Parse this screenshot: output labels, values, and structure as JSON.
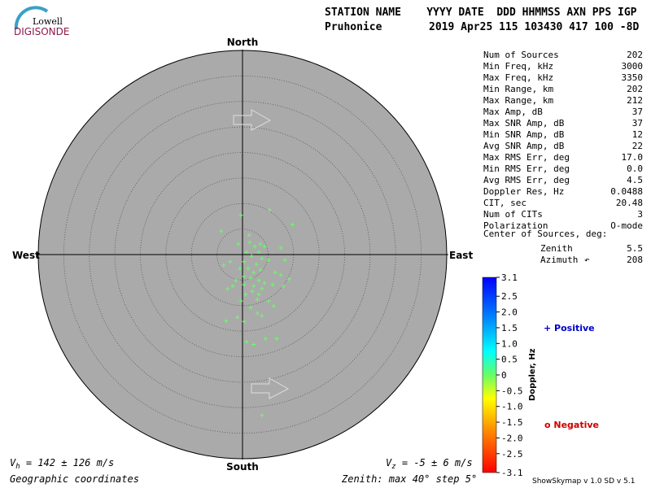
{
  "logo": {
    "top": "Lowell",
    "bottom": "DIGISONDE"
  },
  "header": {
    "labels": "STATION NAME    YYYY DATE  DDD HHMMSS AXN PPS IGP",
    "station": "Pruhonice",
    "values": "2019 Apr25 115 103430 417 100 -8D"
  },
  "stats": [
    [
      "Num of Sources",
      "202"
    ],
    [
      "Min Freq, kHz",
      "3000"
    ],
    [
      "Max Freq, kHz",
      "3350"
    ],
    [
      "Min Range, km",
      "202"
    ],
    [
      "Max Range, km",
      "212"
    ],
    [
      "Max Amp, dB",
      "37"
    ],
    [
      "Max SNR Amp, dB",
      "37"
    ],
    [
      "Min SNR Amp, dB",
      "12"
    ],
    [
      "Avg SNR Amp, dB",
      "22"
    ],
    [
      "Max RMS Err, deg",
      "17.0"
    ],
    [
      "Min RMS Err, deg",
      "0.0"
    ],
    [
      "Avg RMS Err, deg",
      "4.5"
    ],
    [
      "Doppler Res, Hz",
      "0.0488"
    ],
    [
      "CIT, sec",
      "20.48"
    ],
    [
      "Num of CITs",
      "3"
    ],
    [
      "Polarization",
      "O-mode"
    ]
  ],
  "center": {
    "title": "Center of Sources, deg:",
    "zenith_label": "Zenith",
    "zenith": "5.5",
    "azimuth_label": "Azimuth",
    "azimuth": "208"
  },
  "colorbar": {
    "label": "Doppler, Hz",
    "clim": [
      -3.1,
      3.1
    ],
    "ticks": [
      3.1,
      2.5,
      {
        "value": 2,
        "label": "2.0"
      },
      1.5,
      {
        "value": 1,
        "label": "1.0"
      },
      0.5,
      0,
      -0.5,
      {
        "value": -1,
        "label": "-1.0"
      },
      -1.5,
      {
        "value": -2,
        "label": "-2.0"
      },
      -2.5,
      -3.1
    ],
    "positive": "+ Positive",
    "negative": "o Negative"
  },
  "footer": {
    "vh_symbol": "V",
    "vh_sub": "h",
    "vh_text": " = 142 ± 126 m/s",
    "vz_symbol": "V",
    "vz_sub": "z",
    "vz_text": " = -5 ± 6 m/s",
    "coords": "Geographic coordinates",
    "zenith": "Zenith: max 40°  step 5°",
    "version": "ShowSkymap v 1.0  SD v 5.1"
  },
  "chart_data": {
    "type": "scatter",
    "directions": {
      "north": "North",
      "south": "South",
      "east": "East",
      "west": "West"
    },
    "rlim": [
      0,
      40
    ],
    "rstep": 5,
    "color": "#66ff66",
    "x": [
      -0.3,
      5.3,
      9.8,
      -4.2,
      1.4,
      2.4,
      3.5,
      4.3,
      3.2,
      0.8,
      1.8,
      3.8,
      5.1,
      0.3,
      -0.5,
      2.7,
      1.1,
      2.2,
      3.5,
      6.4,
      8.3,
      7.5,
      9.1,
      0.3,
      1.6,
      3.2,
      4.3,
      -1.3,
      -1.9,
      0.3,
      2.2,
      3.8,
      5.9,
      8.0,
      1.9,
      0.6,
      3.2,
      -2.9,
      -0.3,
      2.9,
      5.1,
      1.6,
      6.1,
      2.9,
      3.8,
      -1.0,
      -3.2,
      0.3,
      0.8,
      2.2,
      4.5,
      6.7,
      3.8,
      -3.7,
      -2.4,
      7.5,
      -0.8,
      1.3
    ],
    "values": [
      7.7,
      8.8,
      5.9,
      4.6,
      2.4,
      1.6,
      2.1,
      1.6,
      0.5,
      0.5,
      -0.3,
      -0.8,
      -1.1,
      -1.4,
      -2.7,
      -1.9,
      -2.7,
      -3.5,
      -3.0,
      -3.5,
      -1.1,
      -4.0,
      -4.8,
      -4.3,
      -4.6,
      -5.1,
      -5.6,
      -5.1,
      -6.2,
      -5.9,
      -6.2,
      -6.7,
      -5.9,
      -6.2,
      -7.2,
      -7.8,
      -7.8,
      -6.7,
      -9.1,
      -8.8,
      -9.1,
      -10.4,
      -10.1,
      -11.5,
      -12.0,
      -12.3,
      -13.0,
      -13.1,
      -17.1,
      -17.6,
      -16.5,
      -16.5,
      -31.5,
      -2.1,
      -1.4,
      1.3,
      2.1,
      3.8
    ]
  }
}
